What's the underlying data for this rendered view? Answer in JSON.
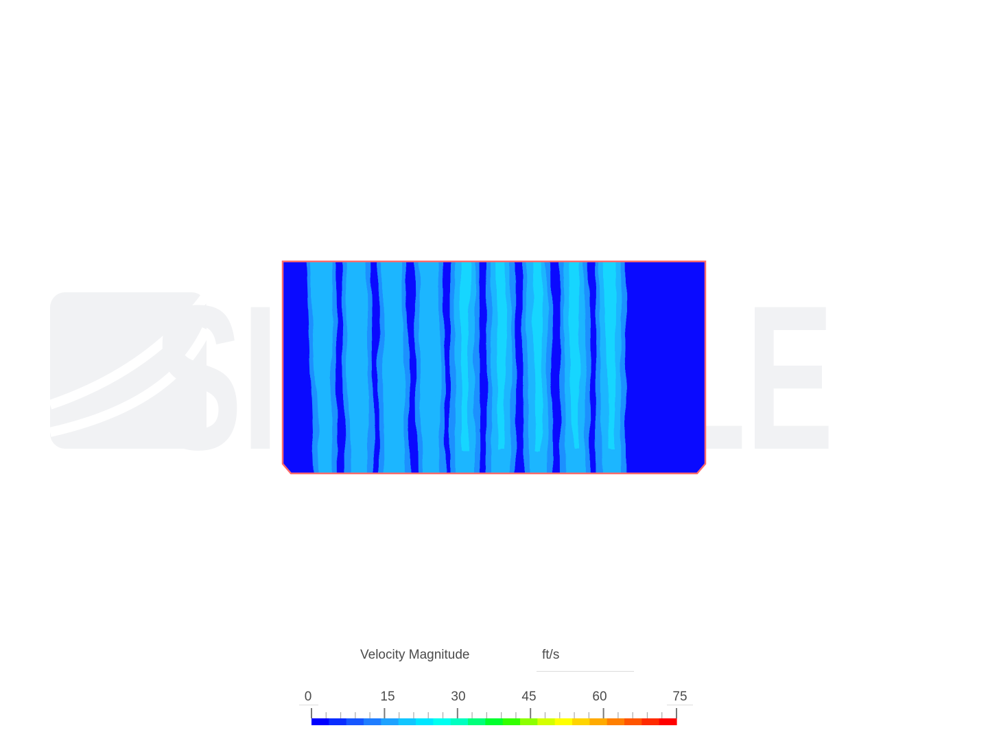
{
  "watermark": {
    "text": "SIMSCALE"
  },
  "result_view": {
    "field": "Velocity Magnitude",
    "unit": "ft/s"
  },
  "legend": {
    "min": 0,
    "max": 75,
    "major_ticks": [
      "0",
      "15",
      "30",
      "45",
      "60",
      "75"
    ],
    "minor_ticks_per_interval": 4,
    "colors": [
      "#0000ff",
      "#0a2dff",
      "#1656ff",
      "#1f7dff",
      "#1ea2ff",
      "#12c6ff",
      "#00e6ff",
      "#00fff0",
      "#00ffc0",
      "#00ff7a",
      "#00ff2e",
      "#33ff00",
      "#8cff00",
      "#d4ff00",
      "#ffff00",
      "#ffd400",
      "#ffaa00",
      "#ff7f00",
      "#ff5500",
      "#ff2a00",
      "#ff0000"
    ]
  },
  "contour": {
    "domain_outline_color": "#ff6a6a",
    "background_velocity_color": "#0a0aff",
    "stream_colors": [
      "#1e90ff",
      "#1fb6ff",
      "#12d8ff"
    ],
    "stream_count": 9
  }
}
